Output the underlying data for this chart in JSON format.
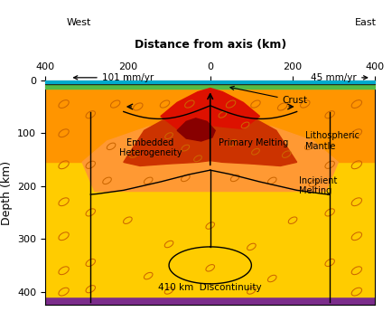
{
  "title": "Distance from axis (km)",
  "ylabel": "Depth (km)",
  "xlim": [
    -400,
    400
  ],
  "ylim": [
    425,
    0
  ],
  "xticks": [
    -400,
    -200,
    0,
    200,
    400
  ],
  "xticklabels": [
    "400",
    "200",
    "0",
    "200",
    "400"
  ],
  "yticks": [
    0,
    100,
    200,
    300,
    400
  ],
  "yticklabels": [
    "0",
    "100",
    "200",
    "300",
    "400"
  ],
  "west_label": "West",
  "east_label": "East",
  "west_rate": "101 mm/yr",
  "east_rate": "45 mm/yr",
  "crust_label": "Crust",
  "litho_label": "Lithospheric\nMantle",
  "embed_label": "Embedded\nHeterogeneity",
  "primary_label": "Primary Melting",
  "incipient_label": "Incipient\nMelting",
  "discontinuity_label": "410 km  Discontinuity",
  "col_ocean": "#00AACC",
  "col_seafloor": "#2B1500",
  "col_crust": "#55BB44",
  "col_litho": "#FF9500",
  "col_mantle": "#FFD000",
  "col_deep": "#FFB800",
  "col_incipient": "#FF9933",
  "col_primary": "#CC3300",
  "col_primary_top": "#DD1100",
  "col_hetero": "#880000",
  "col_purple": "#7B2D8B",
  "col_ellipse": "#CC6600",
  "ellipses": [
    [
      -355,
      45,
      26,
      13,
      -20
    ],
    [
      -355,
      100,
      26,
      13,
      -20
    ],
    [
      -355,
      160,
      26,
      13,
      -20
    ],
    [
      -355,
      230,
      26,
      13,
      -20
    ],
    [
      -355,
      295,
      26,
      13,
      -20
    ],
    [
      -355,
      360,
      26,
      13,
      -20
    ],
    [
      -355,
      400,
      26,
      13,
      -20
    ],
    [
      -290,
      65,
      24,
      12,
      -20
    ],
    [
      -290,
      160,
      24,
      12,
      -20
    ],
    [
      -290,
      250,
      24,
      12,
      -20
    ],
    [
      -290,
      345,
      24,
      12,
      -20
    ],
    [
      -290,
      395,
      24,
      12,
      -20
    ],
    [
      -230,
      45,
      24,
      12,
      -20
    ],
    [
      -175,
      50,
      24,
      12,
      -20
    ],
    [
      -110,
      45,
      24,
      12,
      -20
    ],
    [
      -50,
      45,
      24,
      12,
      -20
    ],
    [
      355,
      45,
      26,
      13,
      -20
    ],
    [
      355,
      100,
      26,
      13,
      -20
    ],
    [
      355,
      160,
      26,
      13,
      -20
    ],
    [
      355,
      230,
      26,
      13,
      -20
    ],
    [
      355,
      295,
      26,
      13,
      -20
    ],
    [
      355,
      360,
      26,
      13,
      -20
    ],
    [
      355,
      400,
      26,
      13,
      -20
    ],
    [
      290,
      65,
      24,
      12,
      -20
    ],
    [
      290,
      160,
      24,
      12,
      -20
    ],
    [
      290,
      250,
      24,
      12,
      -20
    ],
    [
      290,
      345,
      24,
      12,
      -20
    ],
    [
      230,
      45,
      24,
      12,
      -20
    ],
    [
      175,
      50,
      24,
      12,
      -20
    ],
    [
      110,
      45,
      24,
      12,
      -20
    ],
    [
      50,
      45,
      24,
      12,
      -20
    ],
    [
      -240,
      125,
      22,
      11,
      -20
    ],
    [
      -185,
      140,
      22,
      11,
      -20
    ],
    [
      240,
      125,
      22,
      11,
      -20
    ],
    [
      185,
      140,
      22,
      11,
      -20
    ],
    [
      -250,
      190,
      22,
      11,
      -20
    ],
    [
      250,
      195,
      22,
      11,
      -20
    ],
    [
      -150,
      190,
      22,
      11,
      -20
    ],
    [
      150,
      190,
      22,
      11,
      -20
    ],
    [
      -60,
      185,
      22,
      11,
      -20
    ],
    [
      60,
      185,
      22,
      11,
      -20
    ],
    [
      -200,
      265,
      22,
      11,
      -20
    ],
    [
      -100,
      310,
      22,
      11,
      -20
    ],
    [
      0,
      275,
      22,
      11,
      -20
    ],
    [
      100,
      315,
      22,
      11,
      -20
    ],
    [
      200,
      265,
      22,
      11,
      -20
    ],
    [
      -150,
      370,
      22,
      11,
      -20
    ],
    [
      0,
      355,
      22,
      11,
      -20
    ],
    [
      150,
      375,
      22,
      11,
      -20
    ],
    [
      -100,
      398,
      22,
      11,
      -20
    ],
    [
      100,
      398,
      22,
      11,
      -20
    ],
    [
      -100,
      105,
      20,
      10,
      -20
    ],
    [
      -60,
      128,
      20,
      10,
      -20
    ],
    [
      30,
      65,
      20,
      10,
      -20
    ],
    [
      85,
      85,
      20,
      10,
      -20
    ],
    [
      55,
      118,
      20,
      10,
      -20
    ],
    [
      110,
      135,
      20,
      10,
      -20
    ],
    [
      -30,
      148,
      20,
      10,
      -20
    ]
  ]
}
